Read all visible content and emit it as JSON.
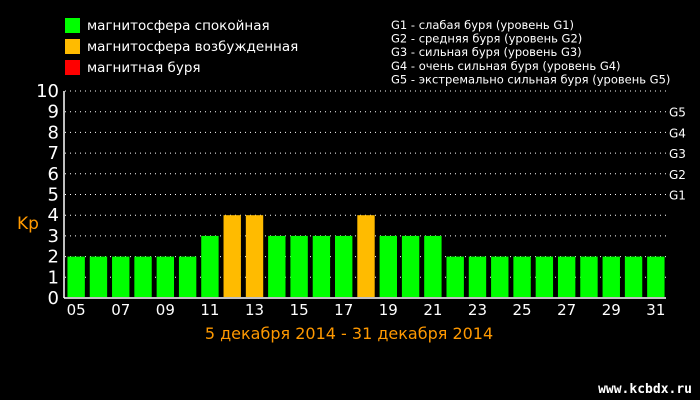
{
  "chart_data": {
    "type": "bar",
    "ylabel": "Kp",
    "ylim": [
      0,
      10
    ],
    "yticks": [
      0,
      1,
      2,
      3,
      4,
      5,
      6,
      7,
      8,
      9,
      10
    ],
    "gscale": [
      "G1",
      "G2",
      "G3",
      "G4",
      "G5"
    ],
    "date_range": "5 декабря 2014 - 31 декабря 2014",
    "categories": [
      "05",
      "06",
      "07",
      "08",
      "09",
      "10",
      "11",
      "12",
      "13",
      "14",
      "15",
      "16",
      "17",
      "18",
      "19",
      "20",
      "21",
      "22",
      "23",
      "24",
      "25",
      "26",
      "27",
      "28",
      "29",
      "30",
      "31"
    ],
    "xtick_labels": [
      "05",
      "07",
      "09",
      "11",
      "13",
      "15",
      "17",
      "19",
      "21",
      "23",
      "25",
      "27",
      "29",
      "31"
    ],
    "values": [
      2,
      2,
      2,
      2,
      2,
      2,
      3,
      4,
      4,
      3,
      3,
      3,
      3,
      4,
      3,
      3,
      3,
      2,
      2,
      2,
      2,
      2,
      2,
      2,
      2,
      2,
      2
    ],
    "colors": {
      "quiet": "#00ff00",
      "disturbed": "#ffbb00",
      "storm": "#ff0000"
    },
    "grid": true
  },
  "legend": [
    {
      "label": "магнитосфера спокойная",
      "color": "#00ff00"
    },
    {
      "label": "магнитосфера возбужденная",
      "color": "#ffbb00"
    },
    {
      "label": "магнитная буря",
      "color": "#ff0000"
    }
  ],
  "g_legend": [
    "G1 - слабая буря (уровень G1)",
    "G2 - средняя буря (уровень G2)",
    "G3 - сильная буря (уровень G3)",
    "G4 - очень сильная буря (уровень G4)",
    "G5 - экстремально сильная буря (уровень G5)"
  ],
  "watermark": "www.kcbdx.ru"
}
